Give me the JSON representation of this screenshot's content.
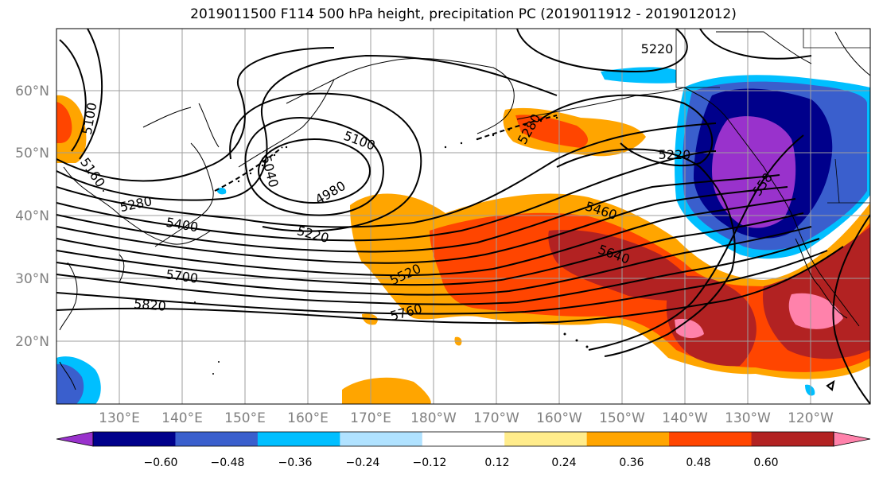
{
  "title": "2019011500 F114 500 hPa height, precipitation PC (2019011912 - 2019012012)",
  "lat_labels": [
    "60°N",
    "50°N",
    "40°N",
    "30°N",
    "20°N"
  ],
  "lon_labels": [
    "130°E",
    "140°E",
    "150°E",
    "160°E",
    "170°E",
    "180°W",
    "170°W",
    "160°W",
    "150°W",
    "140°W",
    "130°W",
    "120°W"
  ],
  "contour_labels": [
    "5100",
    "5160",
    "5280",
    "5400",
    "5700",
    "5820",
    "5040",
    "4980",
    "5100",
    "5220",
    "5220",
    "5520",
    "5760",
    "5460",
    "5640",
    "5280",
    "5220",
    "558"
  ],
  "colorbar": {
    "ticks": [
      "−0.60",
      "−0.48",
      "−0.36",
      "−0.24",
      "−0.12",
      "0.12",
      "0.24",
      "0.36",
      "0.48",
      "0.60"
    ],
    "colors": [
      "#9932cc",
      "#00008b",
      "#3a5fcd",
      "#00bfff",
      "#b0e2ff",
      "#ffffff",
      "#ffec8b",
      "#ffa500",
      "#ff4500",
      "#b22222",
      "#ff82ab"
    ]
  }
}
